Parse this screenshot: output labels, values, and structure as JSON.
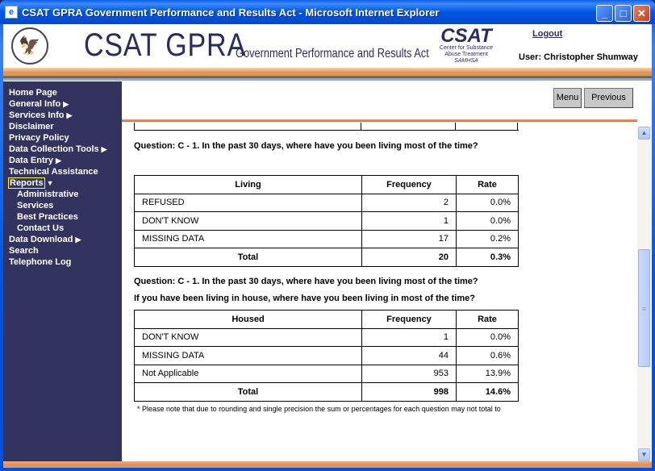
{
  "window": {
    "title": "CSAT GPRA Government Performance and Results Act - Microsoft Internet Explorer",
    "minimize": "_",
    "maximize": "□",
    "close": "✕"
  },
  "header": {
    "logo_main": "CSAT GPRA",
    "logo_sub": "Government Performance and Results Act",
    "csat_logo": "CSAT",
    "csat_line1": "Center for Substance",
    "csat_line2": "Abuse Treatment",
    "csat_line3": "SAMHSA",
    "logout": "Logout",
    "user": "User: Christopher Shumway"
  },
  "sidebar": {
    "items": [
      {
        "label": "Home Page"
      },
      {
        "label": "General Info",
        "arrow": "▶"
      },
      {
        "label": "Services Info",
        "arrow": "▶"
      },
      {
        "label": "Disclaimer"
      },
      {
        "label": "Privacy Policy"
      },
      {
        "label": "Data Collection Tools",
        "arrow": "▶"
      },
      {
        "label": "Data Entry",
        "arrow": "▶"
      },
      {
        "label": "Technical Assistance"
      },
      {
        "label": "Reports",
        "arrow": "▼"
      },
      {
        "label": "Administrative"
      },
      {
        "label": "Services"
      },
      {
        "label": "Best Practices"
      },
      {
        "label": "Contact Us"
      },
      {
        "label": "Data Download",
        "arrow": "▶"
      },
      {
        "label": "Search"
      },
      {
        "label": "Telephone Log"
      }
    ]
  },
  "toolbar": {
    "menu": "Menu",
    "previous": "Previous"
  },
  "sections": [
    {
      "question": "Question: C - 1. In the past 30 days, where have you been living most of the time?",
      "headers": [
        "Living",
        "Frequency",
        "Rate"
      ],
      "rows": [
        [
          "REFUSED",
          "2",
          "0.0%"
        ],
        [
          "DON'T KNOW",
          "1",
          "0.0%"
        ],
        [
          "MISSING DATA",
          "17",
          "0.2%"
        ]
      ],
      "total": [
        "Total",
        "20",
        "0.3%"
      ]
    },
    {
      "question": "Question: C - 1. In the past 30 days, where have you been living most of the time?",
      "subquestion": "If you have been living in house, where have you been living in most of the time?",
      "headers": [
        "Housed",
        "Frequency",
        "Rate"
      ],
      "rows": [
        [
          "DON'T KNOW",
          "1",
          "0.0%"
        ],
        [
          "MISSING DATA",
          "44",
          "0.6%"
        ],
        [
          "Not Applicable",
          "953",
          "13.9%"
        ]
      ],
      "total": [
        "Total",
        "998",
        "14.6%"
      ]
    }
  ],
  "note": "*  Please note that due to rounding and single precision the sum or percentages for each question may not total to",
  "colors": {
    "sidebar": "#33335f",
    "title_bar": "#0055e5",
    "accent": "#e88c5a"
  }
}
